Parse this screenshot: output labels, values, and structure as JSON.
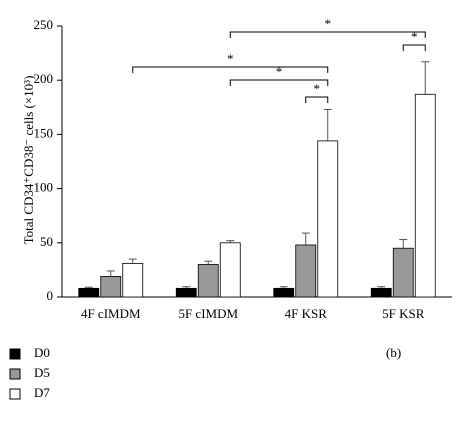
{
  "chart_data": {
    "type": "bar",
    "ylabel": "Total CD34⁺CD38⁻ cells (×10³)",
    "categories": [
      "4F cIMDM",
      "5F cIMDM",
      "4F KSR",
      "5F KSR"
    ],
    "series": [
      {
        "name": "D0",
        "color": "#000000",
        "values": [
          8,
          8,
          8,
          8
        ],
        "errors": [
          1,
          1.5,
          1.5,
          1.5
        ]
      },
      {
        "name": "D5",
        "color": "#999999",
        "values": [
          19,
          30,
          48,
          45
        ],
        "errors": [
          5,
          3,
          11,
          8
        ]
      },
      {
        "name": "D7",
        "color": "#ffffff",
        "values": [
          31,
          50,
          144,
          187
        ],
        "errors": [
          4,
          2,
          29,
          30
        ]
      }
    ],
    "ylim": [
      0,
      250
    ],
    "yticks": [
      0,
      50,
      100,
      150,
      200,
      250
    ],
    "annotations": [
      {
        "text": "*"
      },
      {
        "text": "*"
      },
      {
        "text": "*"
      },
      {
        "text": "*"
      },
      {
        "text": "*"
      }
    ],
    "panel_label": "(b)"
  }
}
